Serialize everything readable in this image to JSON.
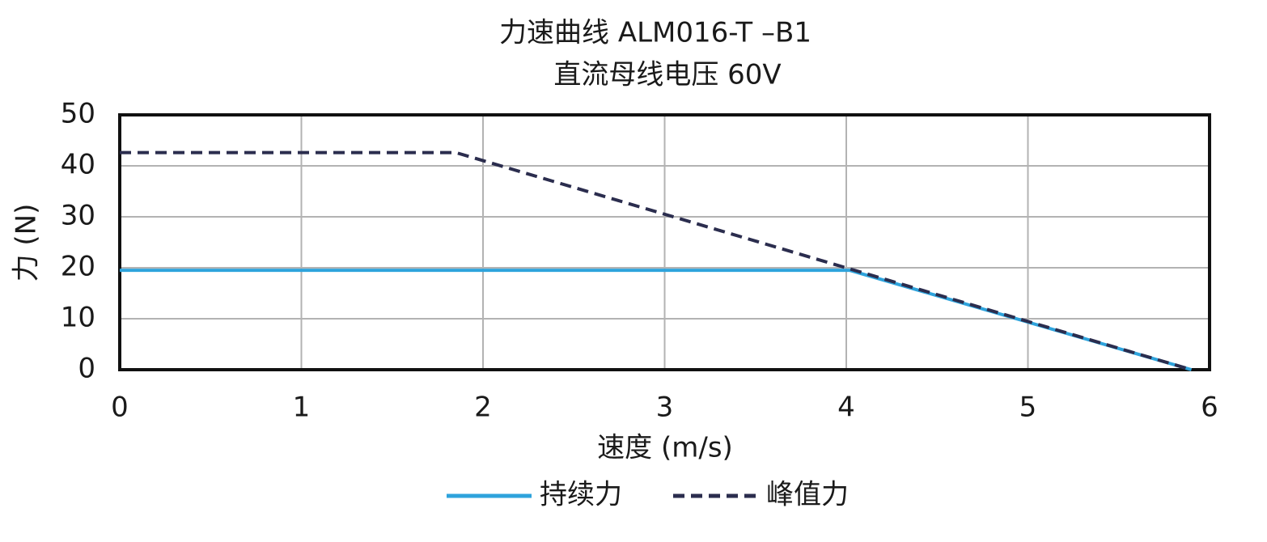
{
  "chart_data": {
    "type": "line",
    "title": "力速曲线 ALM016-T –B1",
    "subtitle": "直流母线电压 60V",
    "x_label": "速度 (m/s)",
    "y_label": "力 (N)",
    "xlim": [
      0,
      6
    ],
    "xticks": [
      0,
      1,
      2,
      3,
      4,
      5,
      6
    ],
    "ylim": [
      0,
      50
    ],
    "yticks": [
      0,
      10,
      20,
      30,
      40,
      50
    ],
    "grid": true,
    "legend": "bottom",
    "series": [
      {
        "name": "持续力",
        "color": "#2ea3dc",
        "style": "solid",
        "x": [
          0,
          4.02,
          5.9
        ],
        "values": [
          19.5,
          19.5,
          0
        ]
      },
      {
        "name": "峰值力",
        "color": "#2b2d4e",
        "style": "dashed",
        "x": [
          0,
          1.85,
          5.9
        ],
        "values": [
          42.6,
          42.6,
          0
        ]
      }
    ]
  }
}
